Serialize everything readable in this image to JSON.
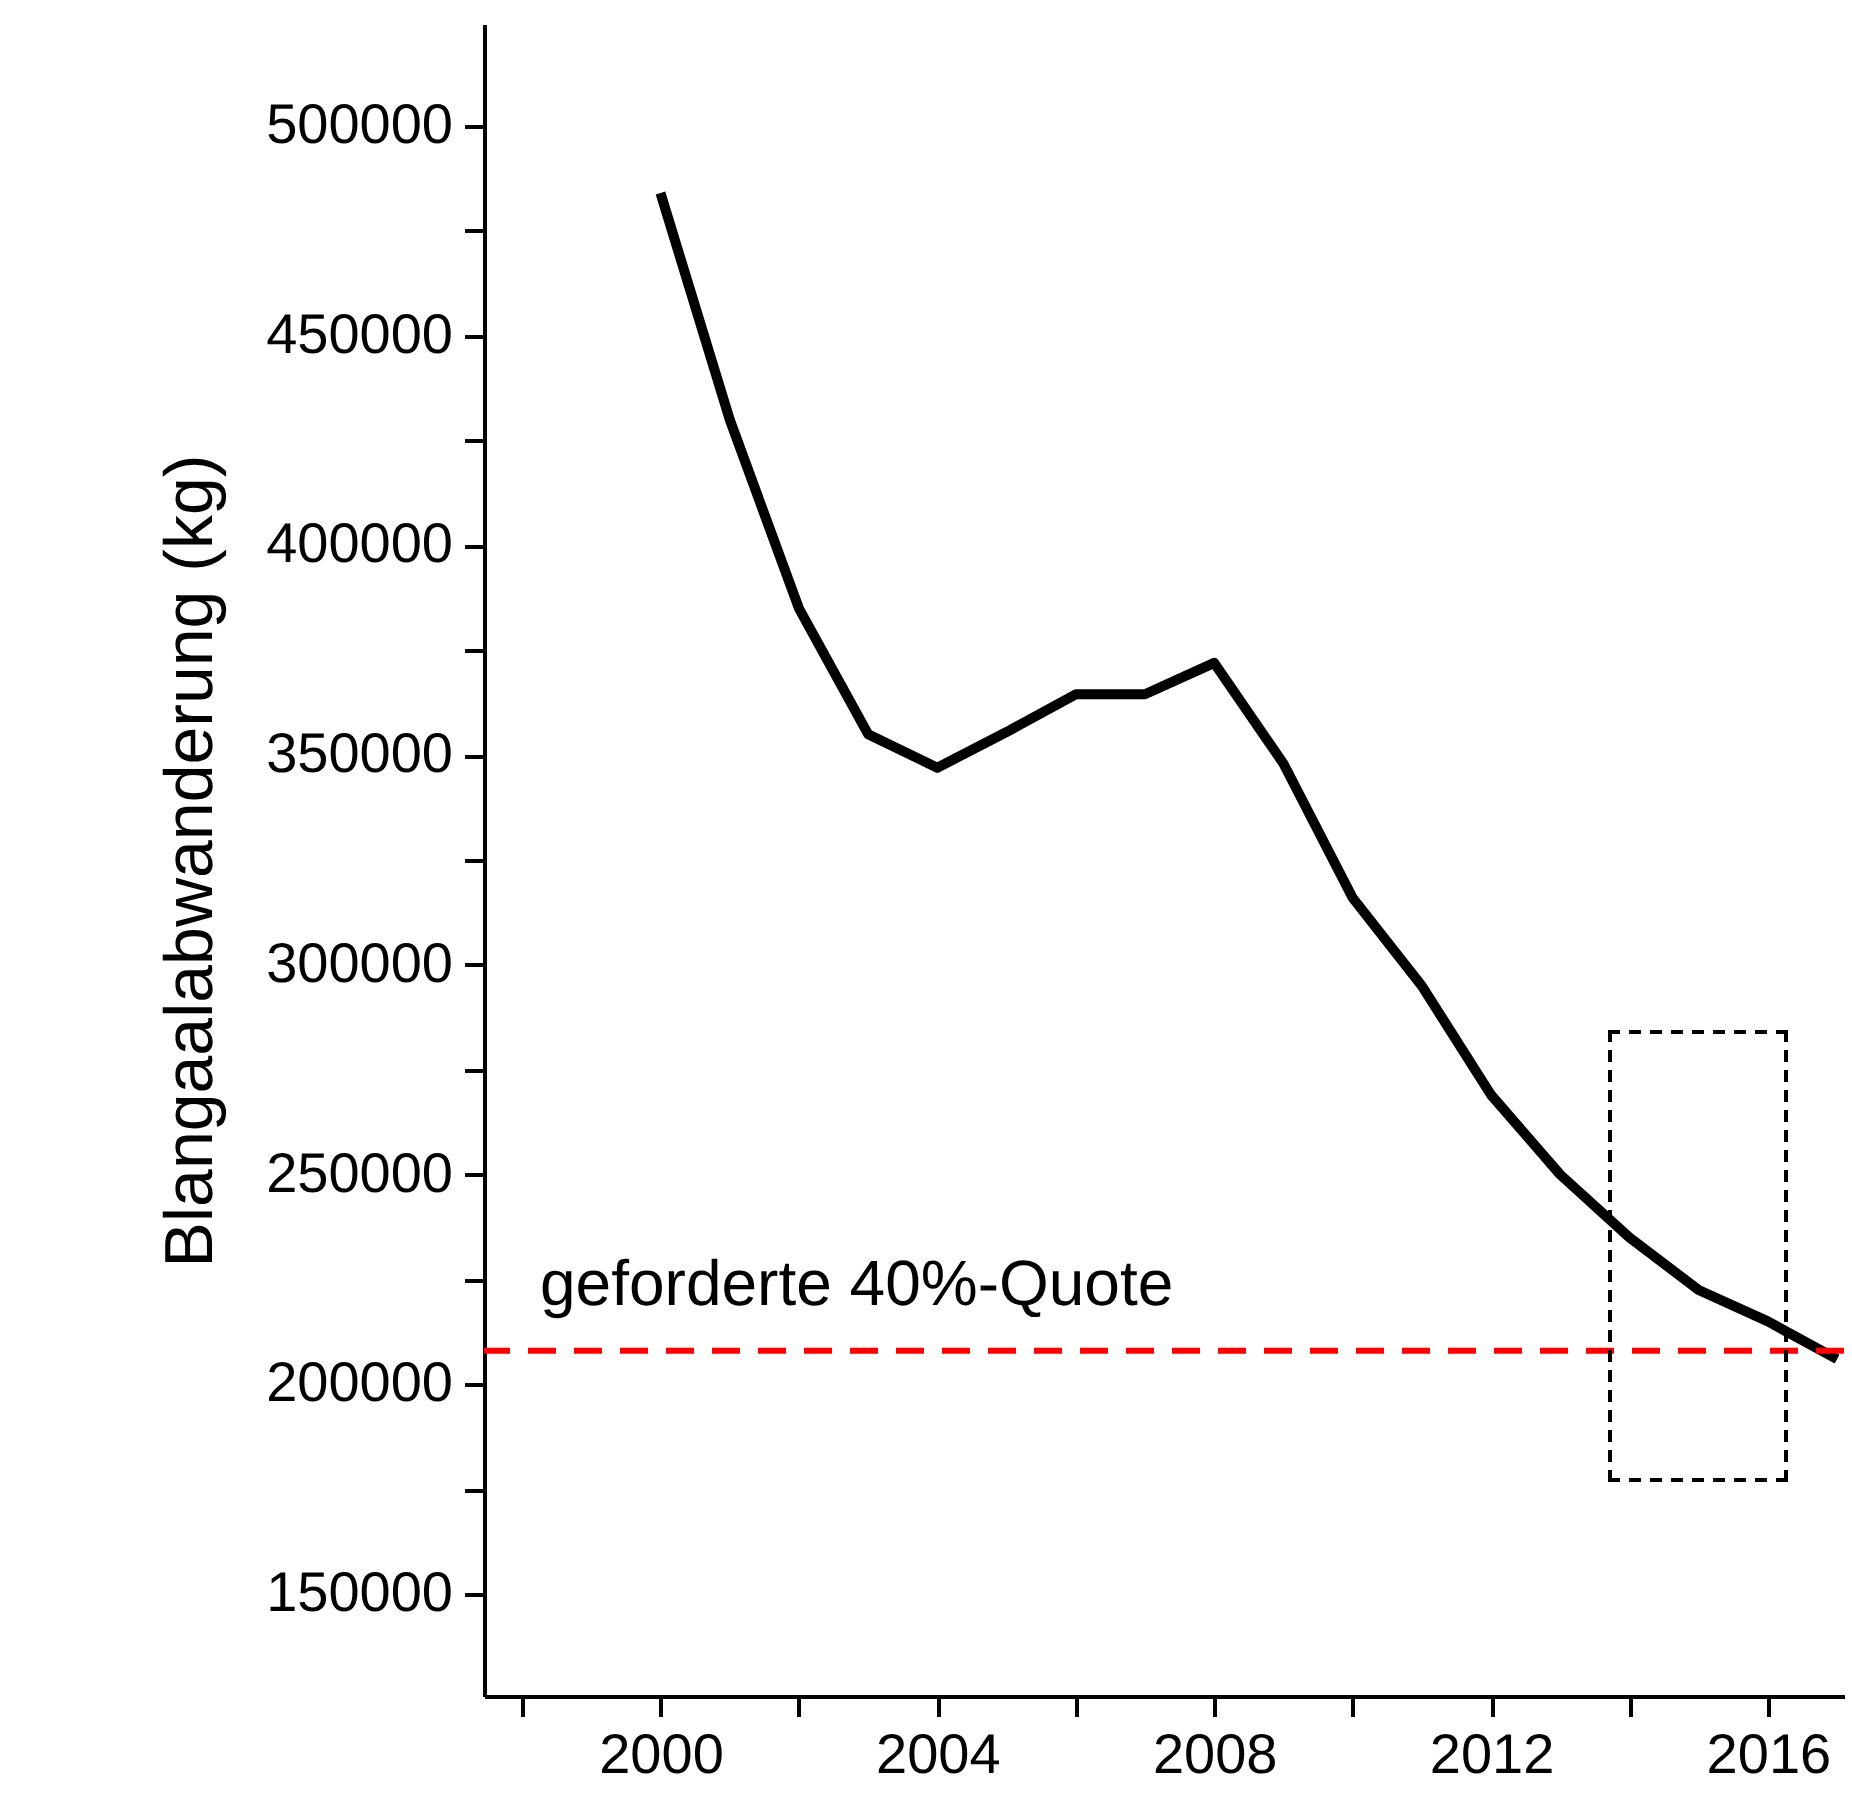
{
  "chart_data": {
    "type": "line",
    "ylabel": "Blangaalabwanderung (kg)",
    "x": [
      2000,
      2001,
      2002,
      2003,
      2004,
      2005,
      2006,
      2007,
      2008,
      2009,
      2010,
      2011,
      2012,
      2013,
      2014,
      2015,
      2016,
      2017
    ],
    "series": [
      {
        "color": "#000000",
        "values": [
          484000,
          430000,
          385000,
          355000,
          347000,
          355500,
          364500,
          364500,
          372000,
          348000,
          316000,
          295000,
          269000,
          250000,
          235000,
          222500,
          215000,
          206000
        ]
      }
    ],
    "xlim": [
      1997.45,
      2017.1
    ],
    "xticks": [
      {
        "value": 1998,
        "label": null
      },
      2000,
      {
        "value": 2002,
        "label": null
      },
      2004,
      {
        "value": 2006,
        "label": null
      },
      2008,
      {
        "value": 2010,
        "label": null
      },
      2012,
      {
        "value": 2014,
        "label": null
      },
      2016
    ],
    "ylim": [
      125700,
      524300
    ],
    "yticks": [
      150000,
      {
        "value": 175000,
        "label": null
      },
      200000,
      {
        "value": 225000,
        "label": null
      },
      250000,
      {
        "value": 275000,
        "label": null
      },
      300000,
      {
        "value": 325000,
        "label": null
      },
      350000,
      {
        "value": 375000,
        "label": null
      },
      400000,
      {
        "value": 425000,
        "label": null
      },
      450000,
      {
        "value": 475000,
        "label": null
      },
      500000
    ],
    "ref_lines": [
      {
        "axis": "y",
        "value": 208000,
        "label": "geforderte 40%-Quote",
        "color": "#ff0000",
        "line_style": "dashed"
      }
    ],
    "marker": "none",
    "line_style": "solid"
  }
}
